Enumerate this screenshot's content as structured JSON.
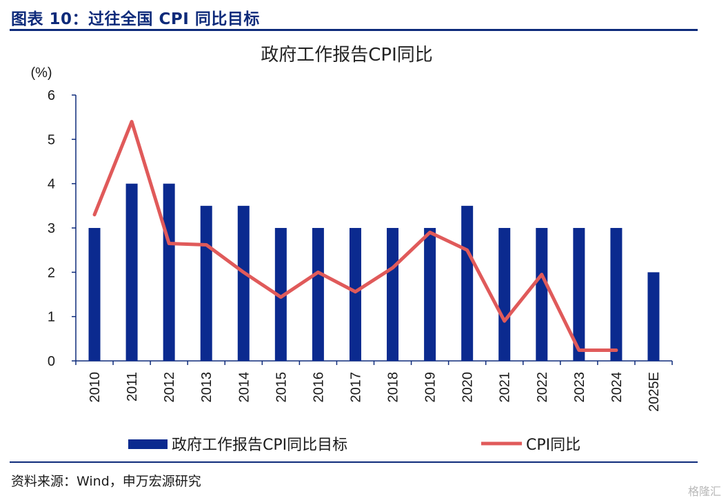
{
  "figure": {
    "title": "图表 10：过往全国 CPI 同比目标",
    "source": "资料来源：Wind，申万宏源研究",
    "watermark": "格隆汇"
  },
  "colors": {
    "bar": "#0b2a8f",
    "line": "#e05a5a",
    "axis": "#0d2a7a"
  },
  "chart_data": {
    "type": "bar",
    "title": "政府工作报告CPI同比",
    "unit_label": "(%)",
    "categories": [
      "2010",
      "2011",
      "2012",
      "2013",
      "2014",
      "2015",
      "2016",
      "2017",
      "2018",
      "2019",
      "2020",
      "2021",
      "2022",
      "2023",
      "2024",
      "2025E"
    ],
    "ylim": [
      0,
      6
    ],
    "yticks": [
      0,
      1,
      2,
      3,
      4,
      5,
      6
    ],
    "grid": false,
    "legend_position": "bottom",
    "series": [
      {
        "name": "政府工作报告CPI同比目标",
        "type": "bar",
        "values": [
          3,
          4,
          4,
          3.5,
          3.5,
          3,
          3,
          3,
          3,
          3,
          3.5,
          3,
          3,
          3,
          3,
          2
        ]
      },
      {
        "name": "CPI同比",
        "type": "line",
        "values": [
          3.3,
          5.4,
          2.65,
          2.62,
          2.0,
          1.44,
          2.0,
          1.56,
          2.1,
          2.9,
          2.5,
          0.9,
          1.95,
          0.24,
          0.24,
          null
        ]
      }
    ]
  }
}
